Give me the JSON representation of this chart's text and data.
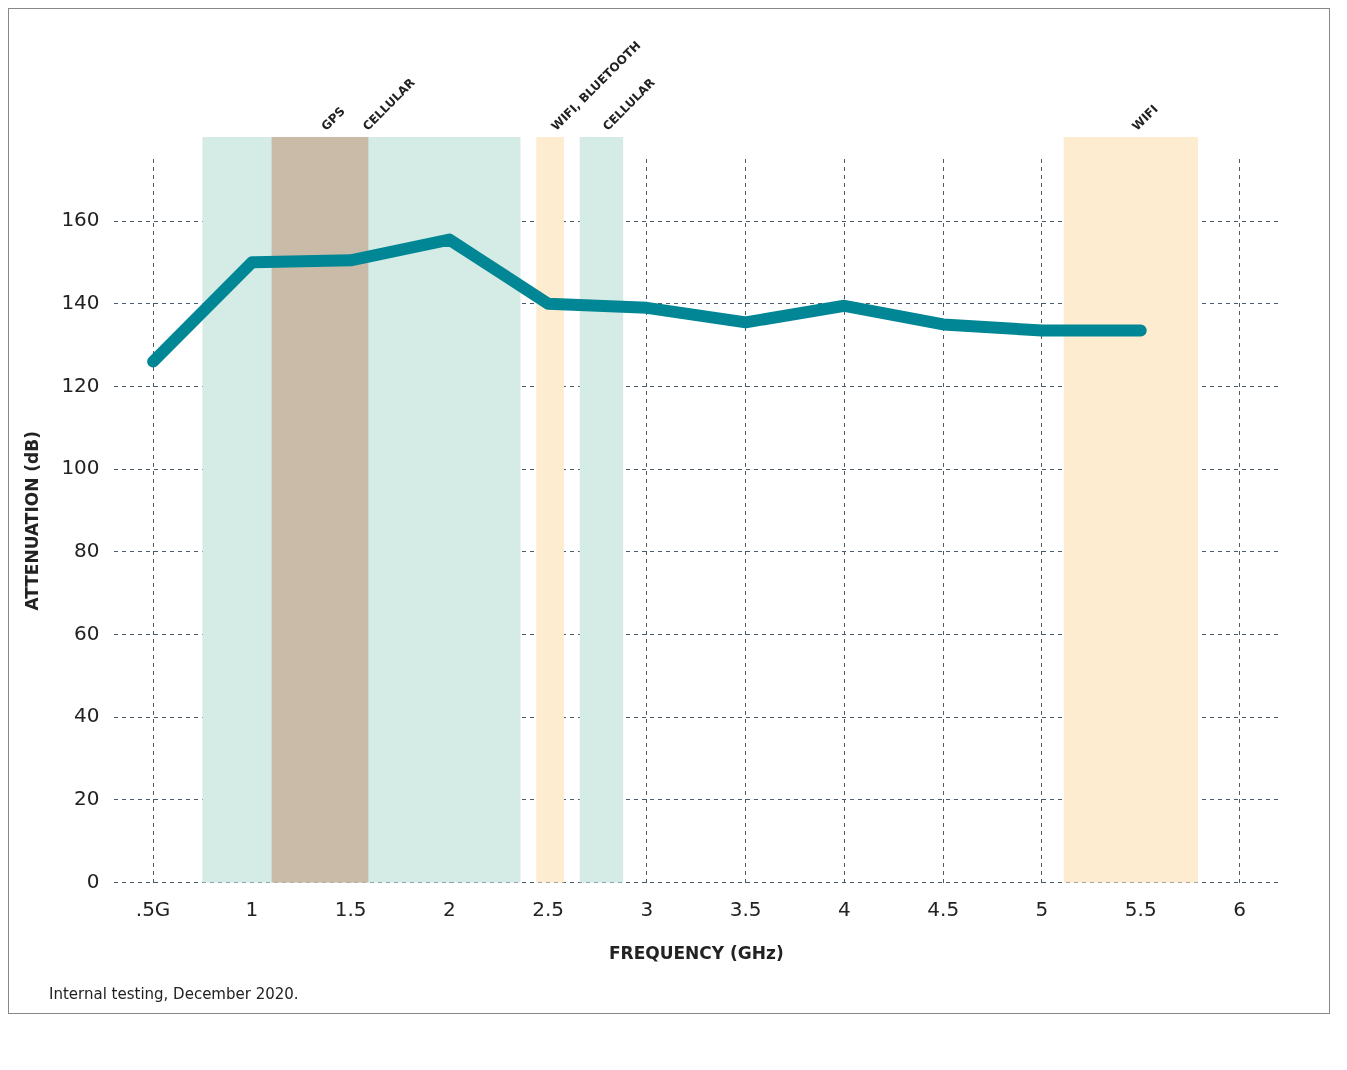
{
  "chart_data": {
    "type": "line",
    "xlabel": "FREQUENCY (GHz)",
    "ylabel": "ATTENUATION (dB)",
    "x": [
      0.5,
      1,
      1.5,
      2,
      2.5,
      3,
      3.5,
      4,
      4.5,
      5,
      5.5
    ],
    "series": [
      {
        "color": "#008694",
        "values": [
          126,
          150,
          150.5,
          155.5,
          140,
          139,
          135.5,
          139.5,
          135,
          133.5,
          133.5
        ]
      }
    ],
    "xlim": [
      0.3,
      6.2
    ],
    "xticks": [
      {
        "value": 0.5,
        "label": ".5G"
      },
      1,
      1.5,
      2,
      2.5,
      3,
      3.5,
      4,
      4.5,
      5,
      5.5,
      6
    ],
    "ylim": [
      0,
      175
    ],
    "yticks": [
      0,
      20,
      40,
      60,
      80,
      100,
      120,
      140,
      160
    ],
    "bands": [
      {
        "axis": "x",
        "from": 0.75,
        "to": 2.36,
        "label": "CELLULAR",
        "color": "#d5ebe5"
      },
      {
        "axis": "x",
        "from": 1.1,
        "to": 1.59,
        "label": "GPS",
        "color": "#c9bba8"
      },
      {
        "axis": "x",
        "from": 2.44,
        "to": 2.58,
        "label": "WIFI, BLUETOOTH",
        "color": "#fdecd0"
      },
      {
        "axis": "x",
        "from": 2.66,
        "to": 2.88,
        "label": "CELLULAR",
        "color": "#d5ebe5"
      },
      {
        "axis": "x",
        "from": 5.11,
        "to": 5.79,
        "label": "WIFI",
        "color": "#fdecd0"
      }
    ],
    "grid": true,
    "marker": "none",
    "line_style": "solid",
    "legend": false,
    "annotations": [
      "Internal testing, December 2020."
    ]
  }
}
